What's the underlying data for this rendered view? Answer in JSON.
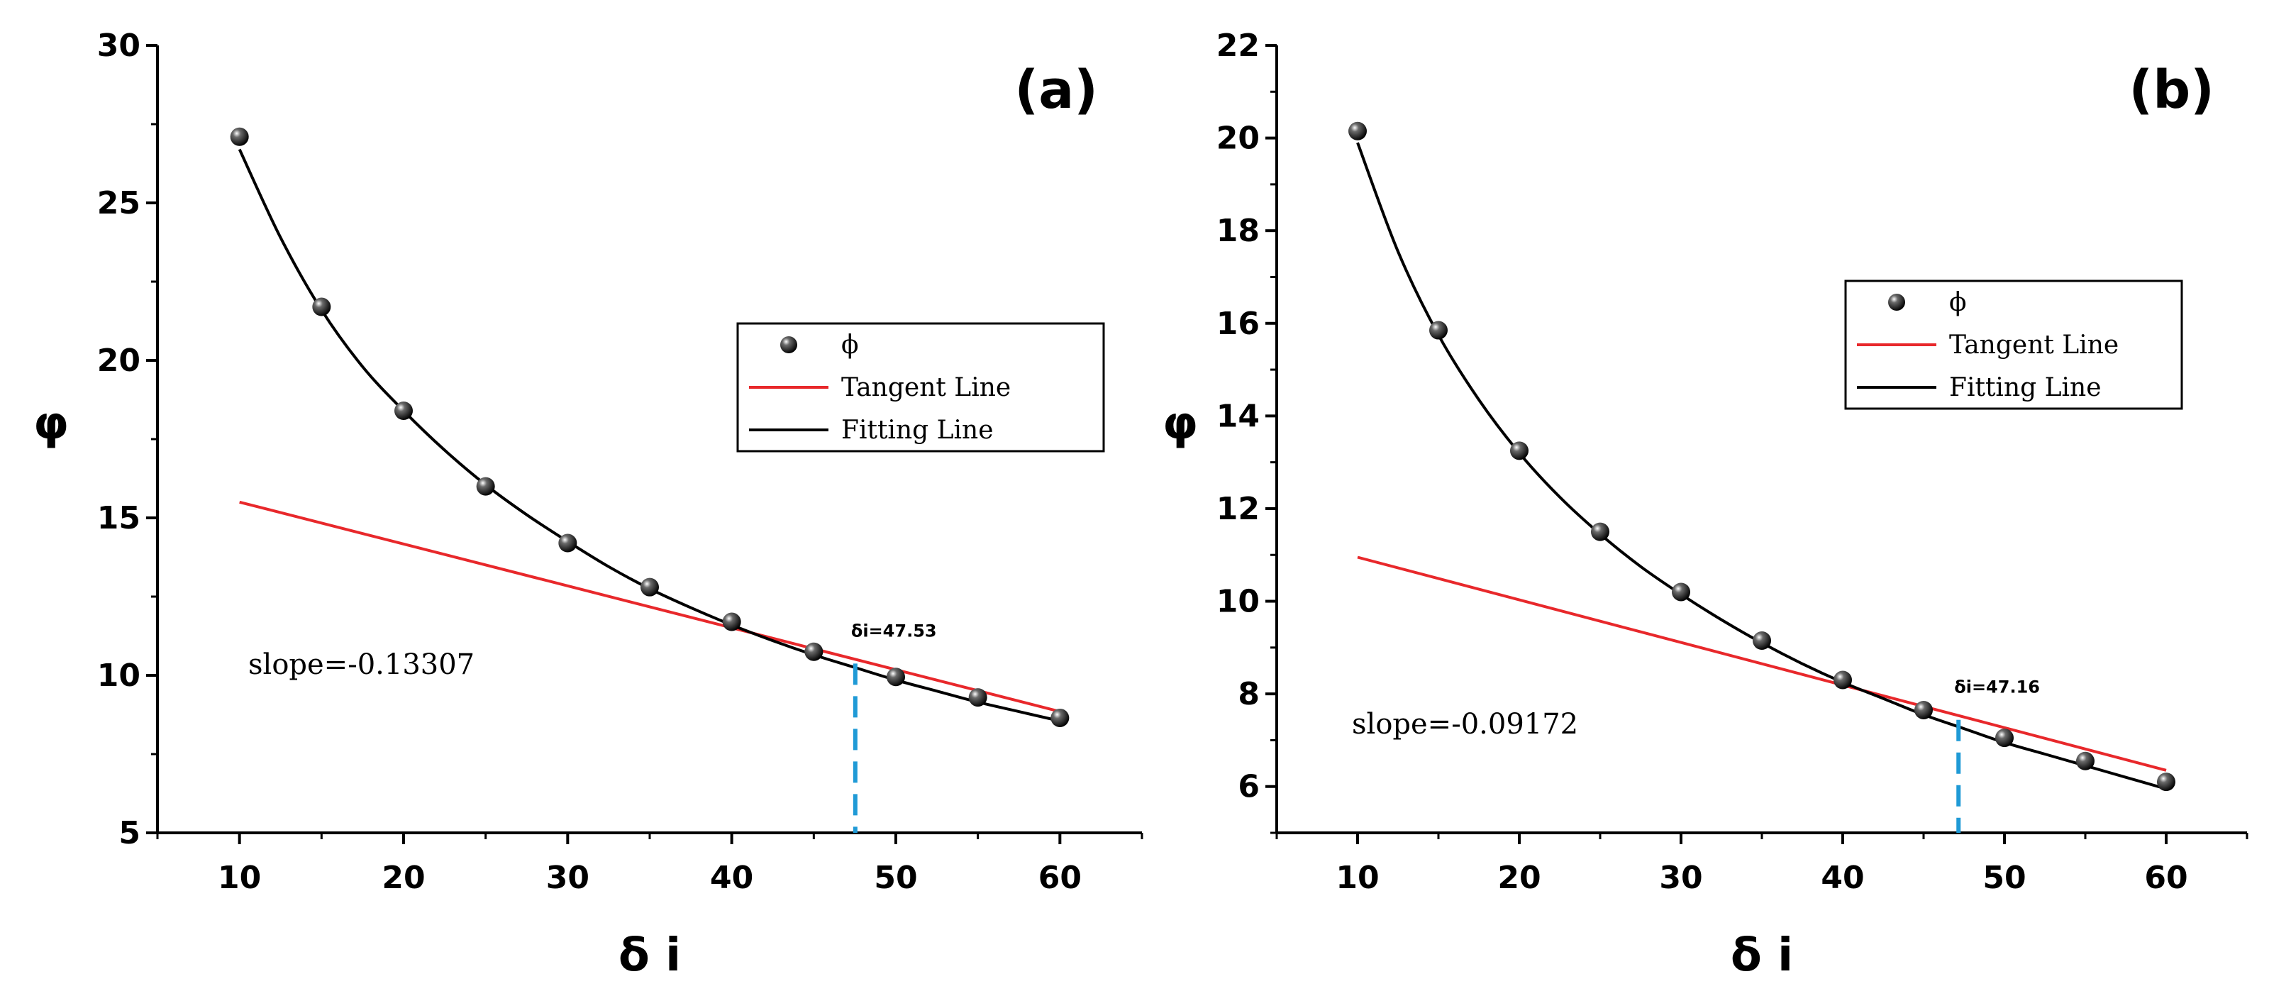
{
  "chart_data": [
    {
      "type": "scatter",
      "panel_label": "(a)",
      "xlabel": "δ i",
      "ylabel": "φ",
      "xlim": [
        5,
        65
      ],
      "ylim": [
        5,
        30
      ],
      "xticks": [
        10,
        20,
        30,
        40,
        50,
        60
      ],
      "yticks": [
        5,
        10,
        15,
        20,
        25,
        30
      ],
      "legend": {
        "position": "center-right",
        "entries": [
          "ϕ",
          "Tangent Line",
          "Fitting Line"
        ]
      },
      "grid": false,
      "series": [
        {
          "name": "ϕ",
          "kind": "points",
          "color": "#000000",
          "x": [
            10,
            15,
            20,
            25,
            30,
            35,
            40,
            45,
            50,
            55,
            60
          ],
          "y": [
            27.1,
            21.7,
            18.4,
            16.0,
            14.2,
            12.8,
            11.7,
            10.75,
            9.95,
            9.3,
            8.65
          ]
        },
        {
          "name": "Tangent Line",
          "kind": "line",
          "color": "#e8282b",
          "x": [
            10,
            60
          ],
          "y": [
            15.5,
            8.85
          ]
        },
        {
          "name": "Fitting Line",
          "kind": "line",
          "color": "#000000",
          "x": [
            10,
            12.5,
            15,
            17.5,
            20,
            22.5,
            25,
            27.5,
            30,
            32.5,
            35,
            37.5,
            40,
            42.5,
            45,
            47.5,
            50,
            52.5,
            55,
            57.5,
            60
          ],
          "y": [
            26.7,
            23.9,
            21.6,
            19.8,
            18.4,
            17.15,
            16.05,
            15.1,
            14.25,
            13.45,
            12.75,
            12.15,
            11.6,
            11.1,
            10.65,
            10.25,
            9.85,
            9.5,
            9.15,
            8.85,
            8.55
          ]
        }
      ],
      "marker": {
        "x": 47.53,
        "label": "δi=47.53",
        "color": "#1f9ad6"
      },
      "slope_text": "slope=-0.13307"
    },
    {
      "type": "scatter",
      "panel_label": "(b)",
      "xlabel": "δ i",
      "ylabel": "φ",
      "xlim": [
        5,
        65
      ],
      "ylim": [
        5,
        22
      ],
      "xticks": [
        10,
        20,
        30,
        40,
        50,
        60
      ],
      "yticks": [
        6,
        8,
        10,
        12,
        14,
        16,
        18,
        20,
        22
      ],
      "legend": {
        "position": "center-right",
        "entries": [
          "ϕ",
          "Tangent Line",
          "Fitting Line"
        ]
      },
      "grid": false,
      "series": [
        {
          "name": "ϕ",
          "kind": "points",
          "color": "#000000",
          "x": [
            10,
            15,
            20,
            25,
            30,
            35,
            40,
            45,
            50,
            55,
            60
          ],
          "y": [
            20.15,
            15.85,
            13.25,
            11.5,
            10.2,
            9.15,
            8.3,
            7.65,
            7.05,
            6.55,
            6.1
          ]
        },
        {
          "name": "Tangent Line",
          "kind": "line",
          "color": "#e8282b",
          "x": [
            10,
            60
          ],
          "y": [
            10.95,
            6.35
          ]
        },
        {
          "name": "Fitting Line",
          "kind": "line",
          "color": "#000000",
          "x": [
            10,
            12.5,
            15,
            17.5,
            20,
            22.5,
            25,
            27.5,
            30,
            32.5,
            35,
            37.5,
            40,
            42.5,
            45,
            47.5,
            50,
            52.5,
            55,
            57.5,
            60
          ],
          "y": [
            19.9,
            17.55,
            15.75,
            14.35,
            13.2,
            12.25,
            11.45,
            10.75,
            10.15,
            9.6,
            9.1,
            8.65,
            8.25,
            7.9,
            7.55,
            7.25,
            6.95,
            6.7,
            6.45,
            6.2,
            5.95
          ]
        }
      ],
      "marker": {
        "x": 47.16,
        "label": "δi=47.16",
        "color": "#1f9ad6"
      },
      "slope_text": "slope=-0.09172"
    }
  ]
}
